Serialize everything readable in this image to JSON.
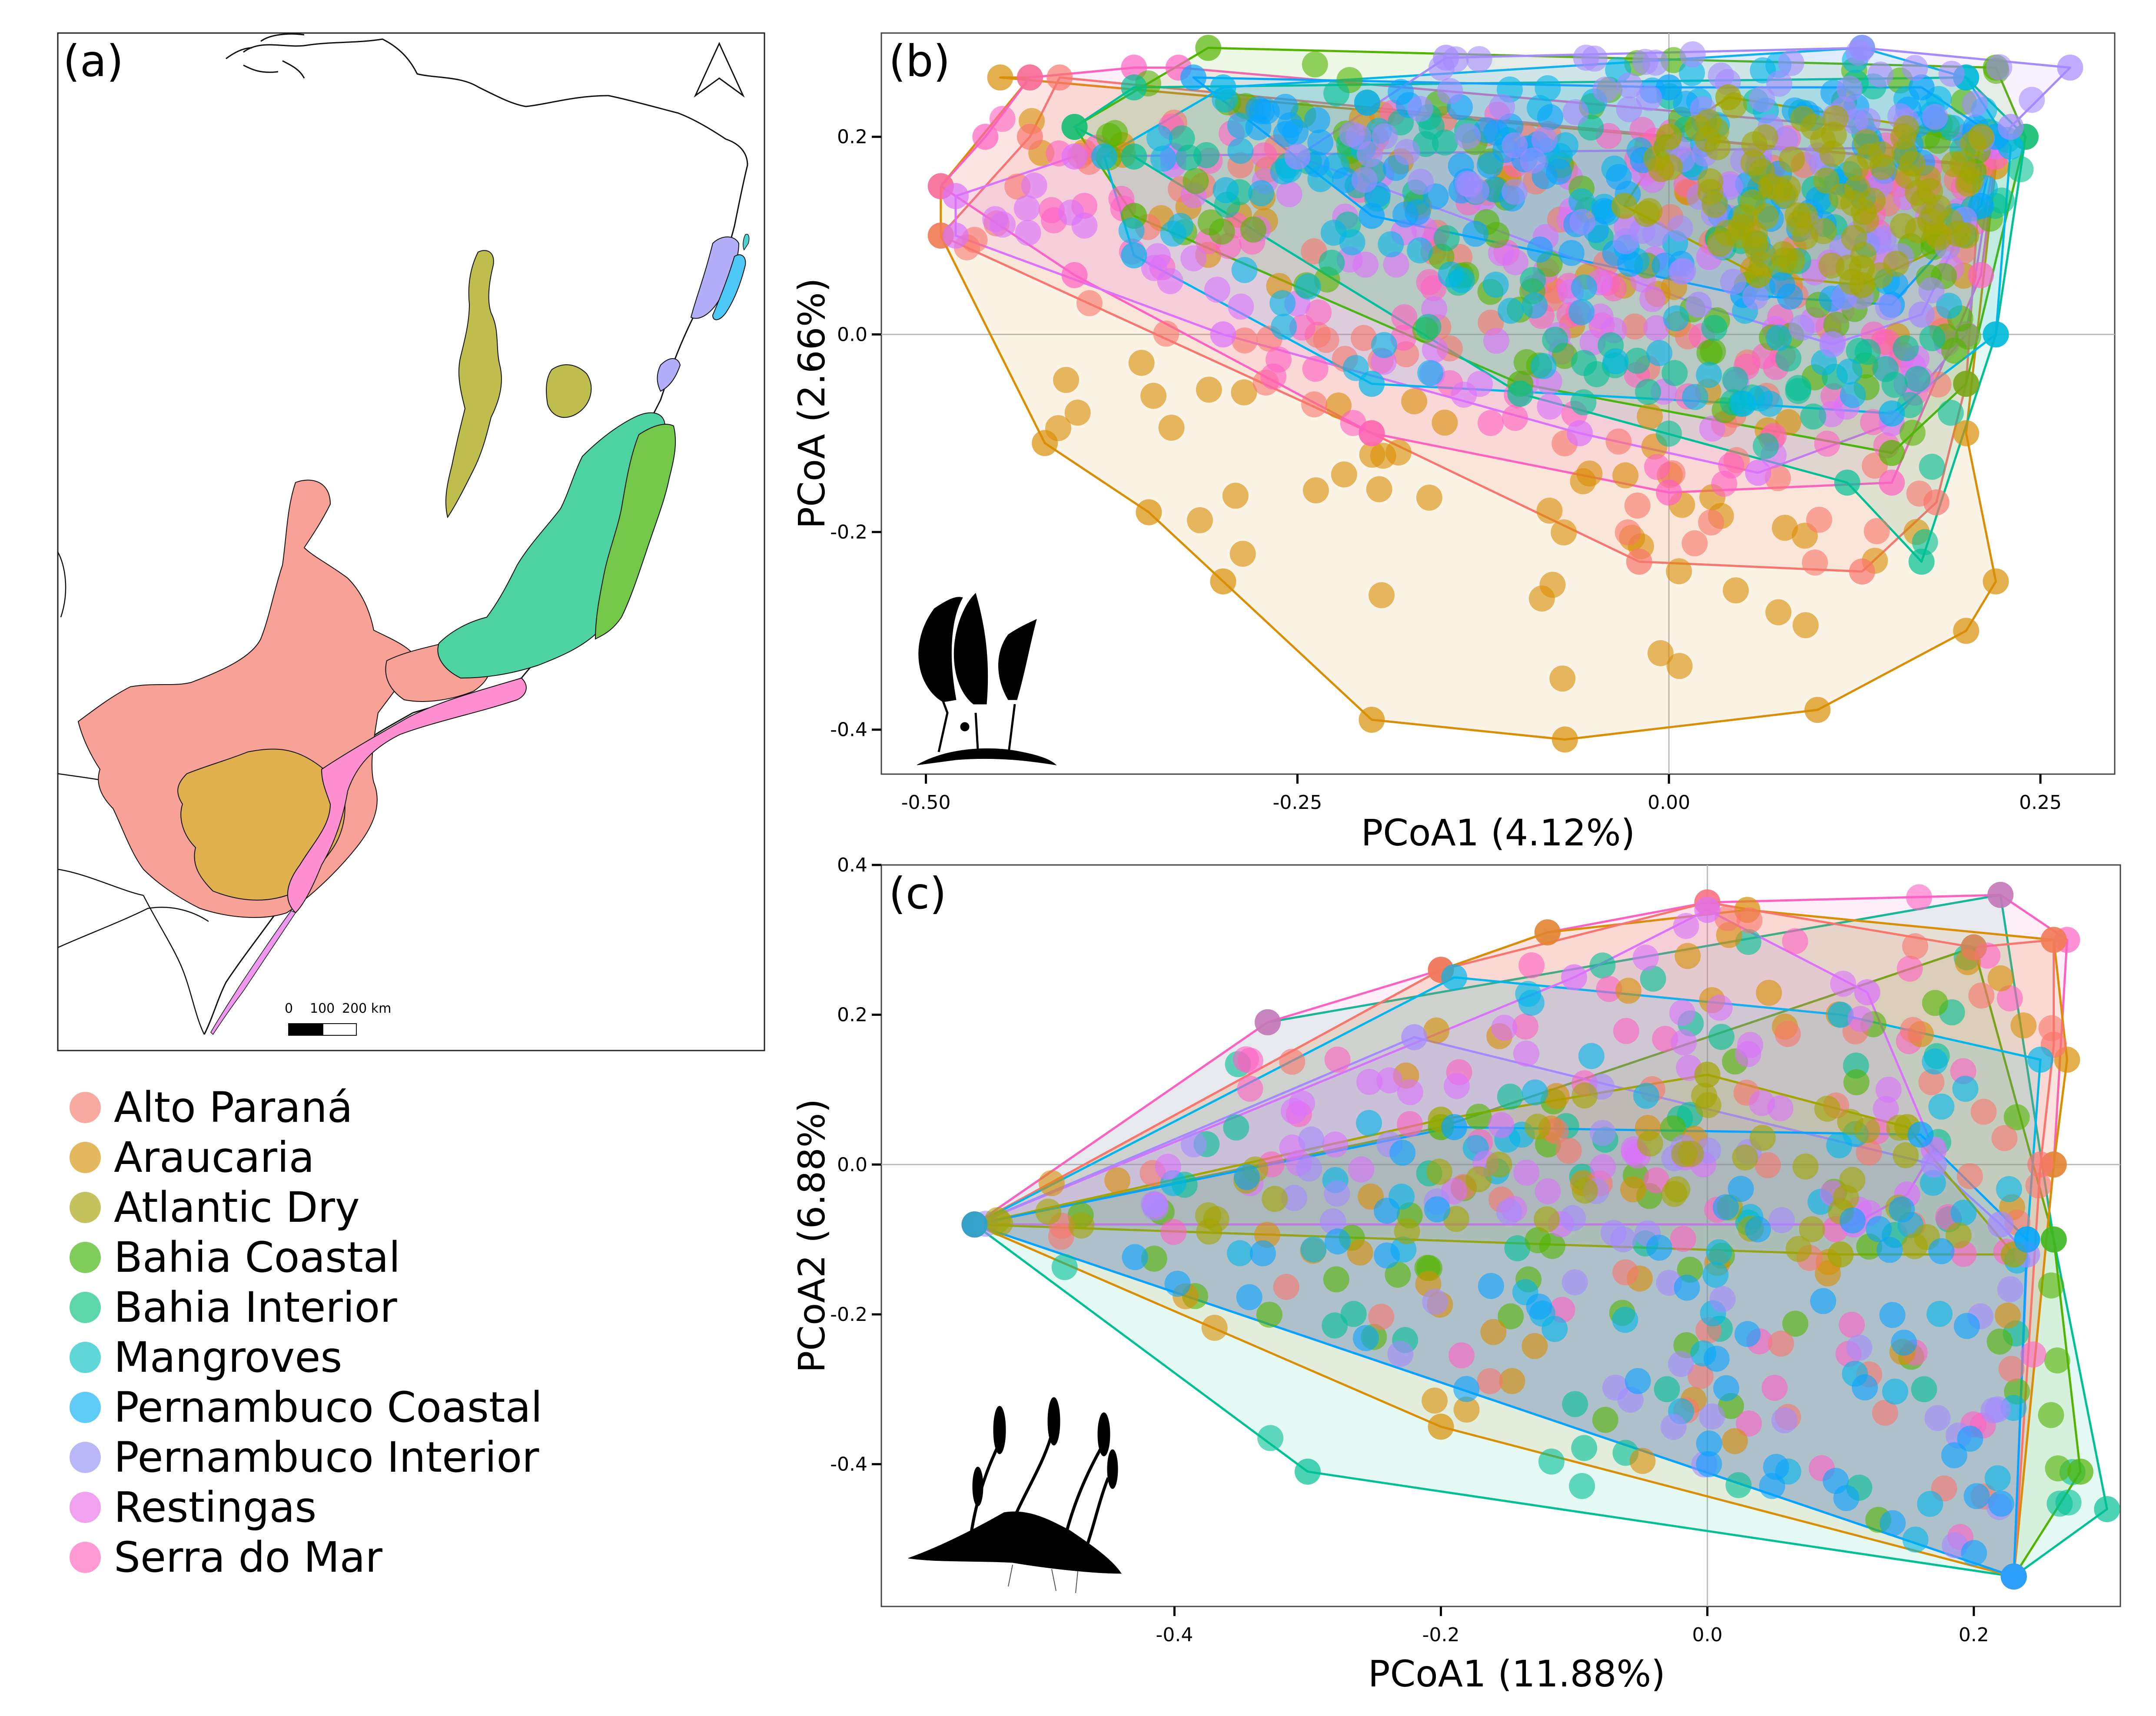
{
  "figure": {
    "panel_a": {
      "label": "(a)",
      "scale_bar": {
        "labels": [
          "0",
          "100",
          "200 km"
        ]
      },
      "north_arrow_icon": "north-arrow-icon",
      "region_colors": {
        "Alto Paraná": "#F8A196",
        "Araucaria": "#E0B04E",
        "Atlantic Dry": "#BEBD4E",
        "Bahia Coastal": "#73C84A",
        "Bahia Interior": "#4DD2A2",
        "Mangroves": "#4ED1D3",
        "Pernambuco Coastal": "#4DC7F6",
        "Pernambuco Interior": "#B2AFF8",
        "Restingas": "#EE98F0",
        "Serra do Mar": "#FF8FD0"
      }
    },
    "legend": [
      {
        "label": "Alto Paraná",
        "color": "#F8A196"
      },
      {
        "label": "Araucaria",
        "color": "#E0B04E"
      },
      {
        "label": "Atlantic Dry",
        "color": "#BEBD4E"
      },
      {
        "label": "Bahia Coastal",
        "color": "#73C84A"
      },
      {
        "label": "Bahia Interior",
        "color": "#4DD2A2"
      },
      {
        "label": "Mangroves",
        "color": "#4ED1D3"
      },
      {
        "label": "Pernambuco Coastal",
        "color": "#4DC7F6"
      },
      {
        "label": "Pernambuco Interior",
        "color": "#B2AFF8"
      },
      {
        "label": "Restingas",
        "color": "#EE98F0"
      },
      {
        "label": "Serra do Mar",
        "color": "#FF8FD0"
      }
    ]
  },
  "chart_data": [
    {
      "type": "scatter",
      "panel": "(b)",
      "xlabel": "PCoA1 (4.12%)",
      "ylabel": "PCoA (2.66%)",
      "xlim": [
        -0.53,
        0.3
      ],
      "ylim": [
        -0.445,
        0.305
      ],
      "xticks": [
        -0.5,
        -0.25,
        0.0,
        0.25
      ],
      "xtick_labels": [
        "-0.50",
        "-0.25",
        "0.00",
        "0.25"
      ],
      "yticks": [
        0.2,
        0.0,
        -0.2,
        -0.4
      ],
      "ytick_labels": [
        "0.2",
        "0.0",
        "-0.2",
        "-0.4"
      ],
      "reference_lines": {
        "x": 0,
        "y": 0
      },
      "icon": "fern-silhouette-icon",
      "hulls": [
        {
          "name": "Araucaria",
          "color": "#D98E04",
          "points": [
            [
              -0.49,
              0.15
            ],
            [
              -0.49,
              0.1
            ],
            [
              -0.42,
              -0.11
            ],
            [
              -0.35,
              -0.18
            ],
            [
              -0.3,
              -0.25
            ],
            [
              -0.2,
              -0.39
            ],
            [
              -0.07,
              -0.41
            ],
            [
              0.1,
              -0.38
            ],
            [
              0.2,
              -0.3
            ],
            [
              0.22,
              -0.25
            ],
            [
              0.2,
              -0.1
            ],
            [
              0.22,
              0.17
            ],
            [
              -0.45,
              0.26
            ],
            [
              -0.43,
              0.26
            ]
          ]
        },
        {
          "name": "Alto Paraná",
          "color": "#F8766D",
          "points": [
            [
              -0.49,
              0.1
            ],
            [
              -0.43,
              0.2
            ],
            [
              -0.41,
              0.26
            ],
            [
              0.21,
              0.17
            ],
            [
              0.2,
              -0.05
            ],
            [
              0.18,
              -0.17
            ],
            [
              0.13,
              -0.24
            ],
            [
              -0.02,
              -0.23
            ],
            [
              -0.2,
              -0.1
            ]
          ]
        },
        {
          "name": "Serra do Mar",
          "color": "#FF61C3",
          "points": [
            [
              -0.49,
              0.15
            ],
            [
              -0.46,
              0.2
            ],
            [
              -0.43,
              0.26
            ],
            [
              -0.36,
              0.27
            ],
            [
              -0.33,
              0.27
            ],
            [
              0.2,
              0.2
            ],
            [
              0.22,
              0.18
            ],
            [
              0.21,
              0.06
            ],
            [
              0.15,
              -0.15
            ],
            [
              0.0,
              -0.16
            ],
            [
              -0.2,
              -0.1
            ],
            [
              -0.4,
              0.06
            ]
          ]
        },
        {
          "name": "Restingas",
          "color": "#DB72FB",
          "points": [
            [
              -0.48,
              0.14
            ],
            [
              -0.4,
              0.18
            ],
            [
              0.22,
              0.19
            ],
            [
              0.2,
              0.0
            ],
            [
              0.15,
              -0.09
            ],
            [
              0.06,
              -0.14
            ],
            [
              -0.06,
              -0.1
            ],
            [
              -0.3,
              0.0
            ],
            [
              -0.48,
              0.1
            ]
          ]
        },
        {
          "name": "Bahia Coastal",
          "color": "#53B400",
          "points": [
            [
              -0.31,
              0.29
            ],
            [
              0.22,
              0.27
            ],
            [
              0.24,
              0.2
            ],
            [
              0.2,
              -0.05
            ],
            [
              0.15,
              -0.12
            ],
            [
              -0.1,
              -0.05
            ],
            [
              -0.36,
              0.12
            ],
            [
              -0.4,
              0.21
            ]
          ]
        },
        {
          "name": "Bahia Interior",
          "color": "#00C094",
          "points": [
            [
              -0.36,
              0.25
            ],
            [
              0.2,
              0.26
            ],
            [
              0.24,
              0.2
            ],
            [
              0.22,
              0.0
            ],
            [
              0.17,
              -0.23
            ],
            [
              0.12,
              -0.15
            ],
            [
              -0.1,
              -0.06
            ],
            [
              -0.36,
              0.18
            ],
            [
              -0.4,
              0.21
            ]
          ]
        },
        {
          "name": "Mangroves",
          "color": "#00B6EB",
          "points": [
            [
              -0.3,
              0.25
            ],
            [
              0.13,
              0.29
            ],
            [
              0.2,
              0.26
            ],
            [
              0.23,
              0.19
            ],
            [
              0.22,
              0.0
            ],
            [
              0.15,
              -0.08
            ],
            [
              0.05,
              -0.07
            ],
            [
              -0.2,
              -0.05
            ],
            [
              -0.36,
              0.08
            ],
            [
              -0.38,
              0.18
            ]
          ]
        },
        {
          "name": "Pernambuco Coastal",
          "color": "#06A4FF",
          "points": [
            [
              -0.32,
              0.26
            ],
            [
              0.0,
              0.25
            ],
            [
              0.17,
              0.25
            ],
            [
              0.22,
              0.2
            ],
            [
              0.21,
              0.13
            ],
            [
              0.15,
              0.03
            ],
            [
              0.05,
              0.04
            ],
            [
              -0.2,
              0.12
            ]
          ]
        },
        {
          "name": "Pernambuco Interior",
          "color": "#A58AFF",
          "points": [
            [
              -0.15,
              0.28
            ],
            [
              0.13,
              0.29
            ],
            [
              0.27,
              0.27
            ],
            [
              0.23,
              0.21
            ],
            [
              0.17,
              0.02
            ],
            [
              0.11,
              -0.01
            ],
            [
              0.02,
              0.03
            ],
            [
              -0.25,
              0.18
            ]
          ]
        },
        {
          "name": "Atlantic Dry",
          "color": "#A3A500",
          "points": [
            [
              0.04,
              0.24
            ],
            [
              0.21,
              0.2
            ],
            [
              0.2,
              0.1
            ],
            [
              0.13,
              0.05
            ],
            [
              0.06,
              0.06
            ],
            [
              -0.03,
              0.13
            ],
            [
              0.0,
              0.2
            ]
          ]
        }
      ]
    },
    {
      "type": "scatter",
      "panel": "(c)",
      "xlabel": "PCoA1 (11.88%)",
      "ylabel": "PCoA2 (6.88%)",
      "xlim": [
        -0.62,
        0.31
      ],
      "ylim": [
        -0.59,
        0.4
      ],
      "xticks": [
        -0.4,
        -0.2,
        0.0,
        0.2
      ],
      "xtick_labels": [
        "-0.4",
        "-0.2",
        "0.0",
        "0.2"
      ],
      "yticks": [
        0.4,
        0.2,
        0.0,
        -0.2,
        -0.4
      ],
      "ytick_labels": [
        "0.4",
        "0.2",
        "0.0",
        "-0.2",
        "-0.4"
      ],
      "reference_lines": {
        "x": 0,
        "y": 0
      },
      "icon": "moss-silhouette-icon",
      "hulls": [
        {
          "name": "Bahia Interior",
          "color": "#00C094",
          "points": [
            [
              -0.55,
              -0.08
            ],
            [
              -0.3,
              -0.41
            ],
            [
              0.23,
              -0.55
            ],
            [
              0.3,
              -0.46
            ],
            [
              0.26,
              -0.1
            ],
            [
              0.22,
              0.36
            ],
            [
              -0.33,
              0.19
            ]
          ]
        },
        {
          "name": "Bahia Coastal",
          "color": "#53B400",
          "points": [
            [
              -0.55,
              -0.08
            ],
            [
              0.23,
              -0.55
            ],
            [
              0.28,
              -0.41
            ],
            [
              0.26,
              -0.1
            ],
            [
              0.2,
              0.29
            ],
            [
              -0.2,
              0.05
            ]
          ]
        },
        {
          "name": "Serra do Mar",
          "color": "#FF61C3",
          "points": [
            [
              -0.55,
              -0.08
            ],
            [
              0.23,
              -0.55
            ],
            [
              0.26,
              0.0
            ],
            [
              0.27,
              0.3
            ],
            [
              0.22,
              0.36
            ],
            [
              0.0,
              0.35
            ],
            [
              -0.12,
              0.31
            ],
            [
              -0.2,
              0.26
            ],
            [
              -0.33,
              0.19
            ]
          ]
        },
        {
          "name": "Araucaria",
          "color": "#D98E04",
          "points": [
            [
              -0.55,
              -0.08
            ],
            [
              -0.2,
              -0.35
            ],
            [
              0.23,
              -0.55
            ],
            [
              0.26,
              0.0
            ],
            [
              0.27,
              0.14
            ],
            [
              0.26,
              0.3
            ],
            [
              0.03,
              0.34
            ],
            [
              -0.12,
              0.31
            ],
            [
              -0.2,
              0.26
            ]
          ]
        },
        {
          "name": "Alto Paraná",
          "color": "#F8766D",
          "points": [
            [
              -0.55,
              -0.08
            ],
            [
              0.23,
              -0.55
            ],
            [
              0.25,
              0.0
            ],
            [
              0.26,
              0.16
            ],
            [
              0.26,
              0.3
            ],
            [
              0.2,
              0.29
            ],
            [
              0.0,
              0.35
            ],
            [
              -0.2,
              0.26
            ]
          ]
        },
        {
          "name": "Mangroves",
          "color": "#00B6EB",
          "points": [
            [
              -0.55,
              -0.08
            ],
            [
              0.23,
              -0.55
            ],
            [
              0.24,
              -0.1
            ],
            [
              0.25,
              0.14
            ],
            [
              0.1,
              0.2
            ],
            [
              -0.19,
              0.25
            ]
          ]
        },
        {
          "name": "Restingas",
          "color": "#DB72FB",
          "points": [
            [
              -0.55,
              -0.08
            ],
            [
              0.11,
              -0.08
            ],
            [
              0.15,
              -0.04
            ],
            [
              0.17,
              0.02
            ],
            [
              0.12,
              0.23
            ],
            [
              -0.0,
              0.34
            ],
            [
              -0.1,
              0.25
            ]
          ]
        },
        {
          "name": "Pernambuco Interior",
          "color": "#A58AFF",
          "points": [
            [
              -0.55,
              -0.08
            ],
            [
              0.23,
              -0.55
            ],
            [
              0.24,
              -0.12
            ],
            [
              0.22,
              -0.08
            ],
            [
              0.17,
              0.0
            ],
            [
              -0.22,
              0.17
            ]
          ]
        },
        {
          "name": "Atlantic Dry",
          "color": "#A3A500",
          "points": [
            [
              -0.55,
              -0.08
            ],
            [
              0.1,
              -0.12
            ],
            [
              0.23,
              -0.12
            ],
            [
              0.15,
              0.05
            ],
            [
              0.0,
              0.12
            ],
            [
              -0.2,
              0.06
            ]
          ]
        },
        {
          "name": "Pernambuco Coastal",
          "color": "#06A4FF",
          "points": [
            [
              -0.55,
              -0.08
            ],
            [
              0.23,
              -0.55
            ],
            [
              0.24,
              -0.1
            ],
            [
              0.16,
              0.04
            ],
            [
              -0.19,
              0.05
            ]
          ]
        }
      ]
    }
  ]
}
